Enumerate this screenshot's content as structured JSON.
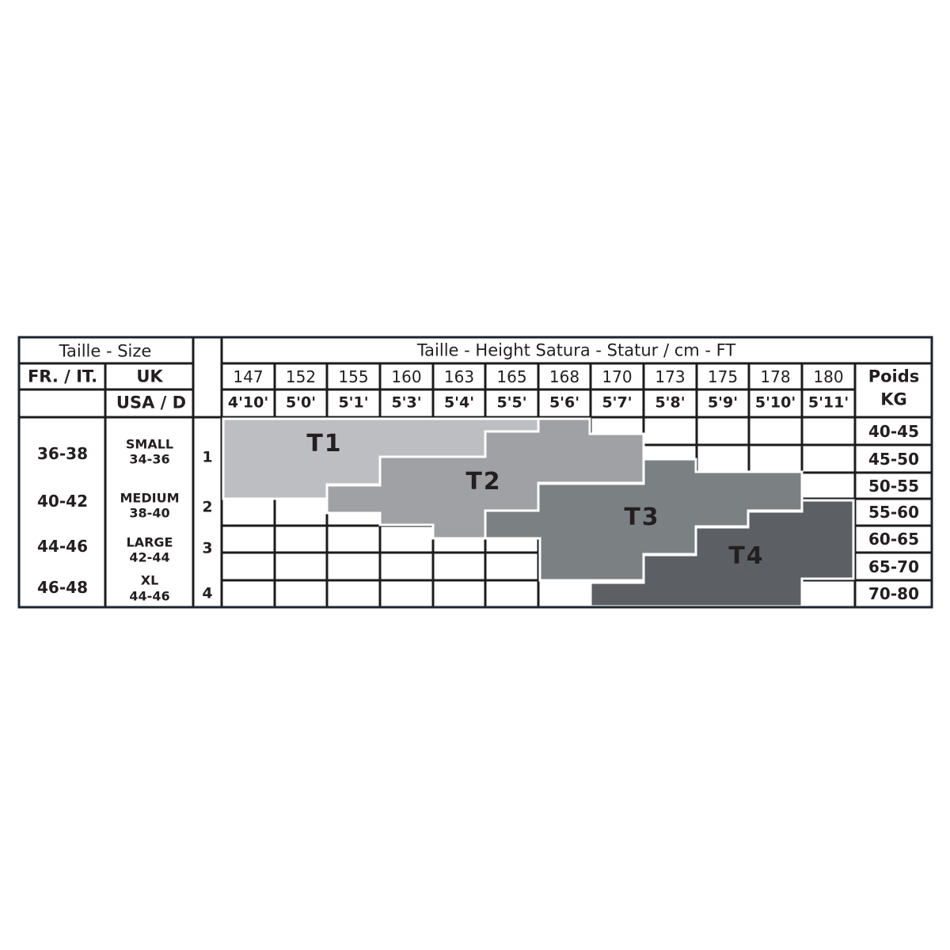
{
  "chart_data": {
    "type": "table",
    "title_size": "Taille - Size",
    "title_height": "Taille - Height Satura - Statur / cm - FT",
    "col_fr_it": "FR. / IT.",
    "col_uk": "UK",
    "col_usa_d": "USA / D",
    "col_weight": [
      "Poids",
      "KG"
    ],
    "heights_cm": [
      "147",
      "152",
      "155",
      "160",
      "163",
      "165",
      "168",
      "170",
      "173",
      "175",
      "178",
      "180"
    ],
    "heights_ft": [
      "4'10'",
      "5'0'",
      "5'1'",
      "5'3'",
      "5'4'",
      "5'5'",
      "5'6'",
      "5'7'",
      "5'8'",
      "5'9'",
      "5'10'",
      "5'11'"
    ],
    "weights_kg": [
      "40-45",
      "45-50",
      "50-55",
      "55-60",
      "60-65",
      "65-70",
      "70-80"
    ],
    "sizes": [
      {
        "fr_it": "36-38",
        "uk": [
          "SMALL",
          "34-36"
        ],
        "num": "1"
      },
      {
        "fr_it": "40-42",
        "uk": [
          "MEDIUM",
          "38-40"
        ],
        "num": "2"
      },
      {
        "fr_it": "44-46",
        "uk": [
          "LARGE",
          "42-44"
        ],
        "num": "3"
      },
      {
        "fr_it": "46-48",
        "uk": [
          "XL",
          "44-46"
        ],
        "num": "4"
      }
    ],
    "zones": [
      {
        "label": "T1",
        "color": "#bdbec1"
      },
      {
        "label": "T2",
        "color": "#a0a1a4"
      },
      {
        "label": "T3",
        "color": "#7b8083"
      },
      {
        "label": "T4",
        "color": "#5c6065"
      }
    ],
    "grid_color": "#1c1c1c"
  }
}
